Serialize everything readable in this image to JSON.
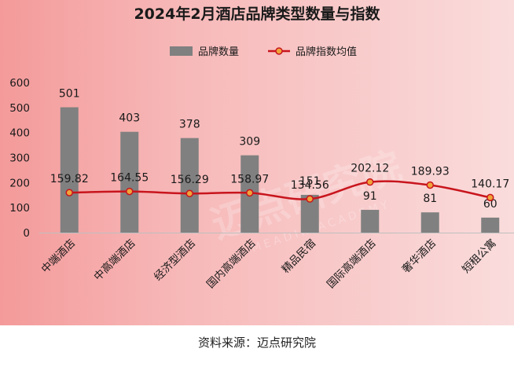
{
  "chart_data": {
    "type": "bar+line",
    "title": "2024年2月酒店品牌类型数量与指数",
    "categories": [
      "中端酒店",
      "中高端酒店",
      "经济型酒店",
      "国内高端酒店",
      "精品民宿",
      "国际高端酒店",
      "奢华酒店",
      "短租公寓"
    ],
    "series": [
      {
        "name": "品牌数量",
        "type": "bar",
        "values": [
          501,
          403,
          378,
          309,
          151,
          91,
          81,
          60
        ]
      },
      {
        "name": "品牌指数均值",
        "type": "line",
        "values": [
          159.82,
          164.55,
          156.29,
          158.97,
          134.56,
          202.12,
          189.93,
          140.17
        ]
      }
    ],
    "y_ticks": [
      0,
      100,
      200,
      300,
      400,
      500,
      600
    ],
    "ylim": [
      0,
      600
    ],
    "legend_position": "top-center",
    "grid": false,
    "colors": {
      "bar": "#808080",
      "line": "#c8151d",
      "marker_fill": "#f0a43a",
      "background_left": "#f49a9a",
      "background_right": "#fadcdc"
    }
  },
  "footer": {
    "source": "资料来源：迈点研究院"
  },
  "watermark": {
    "text": "迈点研究院",
    "subtext": "MEADIN ACADEMY"
  }
}
